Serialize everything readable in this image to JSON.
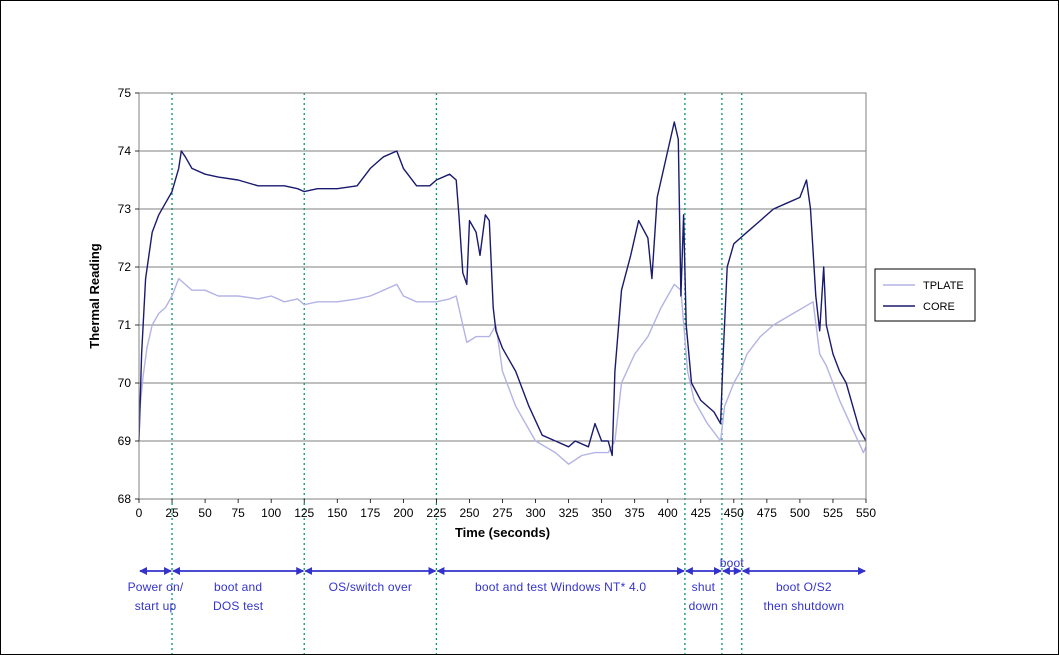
{
  "chart_data": {
    "type": "line",
    "xlabel": "Time (seconds)",
    "ylabel": "Thermal Reading",
    "xlim": [
      0,
      550
    ],
    "ylim": [
      68,
      75
    ],
    "x_ticks": [
      0,
      25,
      50,
      75,
      100,
      125,
      150,
      175,
      200,
      225,
      250,
      275,
      300,
      325,
      350,
      375,
      400,
      425,
      450,
      475,
      500,
      525,
      550
    ],
    "y_ticks": [
      68,
      69,
      70,
      71,
      72,
      73,
      74,
      75
    ],
    "grid": "horizontal",
    "legend_position": "right",
    "series": [
      {
        "name": "TPLATE",
        "color": "#b3b3e6",
        "points": [
          [
            0,
            69.4
          ],
          [
            3,
            70.1
          ],
          [
            6,
            70.6
          ],
          [
            10,
            71.0
          ],
          [
            15,
            71.2
          ],
          [
            20,
            71.3
          ],
          [
            25,
            71.5
          ],
          [
            30,
            71.8
          ],
          [
            35,
            71.7
          ],
          [
            40,
            71.6
          ],
          [
            50,
            71.6
          ],
          [
            60,
            71.5
          ],
          [
            75,
            71.5
          ],
          [
            90,
            71.45
          ],
          [
            100,
            71.5
          ],
          [
            110,
            71.4
          ],
          [
            120,
            71.45
          ],
          [
            125,
            71.35
          ],
          [
            135,
            71.4
          ],
          [
            150,
            71.4
          ],
          [
            165,
            71.45
          ],
          [
            175,
            71.5
          ],
          [
            185,
            71.6
          ],
          [
            195,
            71.7
          ],
          [
            200,
            71.5
          ],
          [
            210,
            71.4
          ],
          [
            225,
            71.4
          ],
          [
            235,
            71.45
          ],
          [
            240,
            71.5
          ],
          [
            245,
            71.0
          ],
          [
            248,
            70.7
          ],
          [
            255,
            70.8
          ],
          [
            265,
            70.8
          ],
          [
            270,
            71.0
          ],
          [
            275,
            70.2
          ],
          [
            285,
            69.6
          ],
          [
            300,
            69.0
          ],
          [
            315,
            68.8
          ],
          [
            325,
            68.6
          ],
          [
            335,
            68.75
          ],
          [
            345,
            68.8
          ],
          [
            355,
            68.8
          ],
          [
            360,
            69.0
          ],
          [
            365,
            70.0
          ],
          [
            375,
            70.5
          ],
          [
            385,
            70.8
          ],
          [
            395,
            71.3
          ],
          [
            405,
            71.7
          ],
          [
            410,
            71.6
          ],
          [
            415,
            70.2
          ],
          [
            420,
            69.7
          ],
          [
            430,
            69.3
          ],
          [
            440,
            69.0
          ],
          [
            443,
            69.6
          ],
          [
            450,
            70.0
          ],
          [
            455,
            70.2
          ],
          [
            460,
            70.5
          ],
          [
            470,
            70.8
          ],
          [
            480,
            71.0
          ],
          [
            495,
            71.2
          ],
          [
            510,
            71.4
          ],
          [
            515,
            70.5
          ],
          [
            520,
            70.3
          ],
          [
            525,
            70.0
          ],
          [
            530,
            69.7
          ],
          [
            540,
            69.2
          ],
          [
            548,
            68.8
          ],
          [
            550,
            68.9
          ]
        ]
      },
      {
        "name": "CORE",
        "color": "#1a1a6e",
        "points": [
          [
            0,
            69.0
          ],
          [
            2,
            70.5
          ],
          [
            5,
            71.8
          ],
          [
            10,
            72.6
          ],
          [
            15,
            72.9
          ],
          [
            20,
            73.1
          ],
          [
            25,
            73.3
          ],
          [
            30,
            73.7
          ],
          [
            32,
            74.0
          ],
          [
            35,
            73.9
          ],
          [
            40,
            73.7
          ],
          [
            50,
            73.6
          ],
          [
            60,
            73.55
          ],
          [
            75,
            73.5
          ],
          [
            90,
            73.4
          ],
          [
            100,
            73.4
          ],
          [
            110,
            73.4
          ],
          [
            120,
            73.35
          ],
          [
            125,
            73.3
          ],
          [
            135,
            73.35
          ],
          [
            150,
            73.35
          ],
          [
            165,
            73.4
          ],
          [
            175,
            73.7
          ],
          [
            185,
            73.9
          ],
          [
            195,
            74.0
          ],
          [
            200,
            73.7
          ],
          [
            210,
            73.4
          ],
          [
            220,
            73.4
          ],
          [
            225,
            73.5
          ],
          [
            235,
            73.6
          ],
          [
            240,
            73.5
          ],
          [
            242,
            72.9
          ],
          [
            245,
            71.9
          ],
          [
            248,
            71.7
          ],
          [
            250,
            72.8
          ],
          [
            255,
            72.6
          ],
          [
            258,
            72.2
          ],
          [
            262,
            72.9
          ],
          [
            265,
            72.8
          ],
          [
            268,
            71.3
          ],
          [
            270,
            70.9
          ],
          [
            275,
            70.6
          ],
          [
            285,
            70.2
          ],
          [
            295,
            69.6
          ],
          [
            305,
            69.1
          ],
          [
            315,
            69.0
          ],
          [
            325,
            68.9
          ],
          [
            330,
            69.0
          ],
          [
            340,
            68.9
          ],
          [
            345,
            69.3
          ],
          [
            350,
            69.0
          ],
          [
            355,
            69.0
          ],
          [
            358,
            68.75
          ],
          [
            360,
            70.2
          ],
          [
            365,
            71.6
          ],
          [
            372,
            72.2
          ],
          [
            378,
            72.8
          ],
          [
            385,
            72.5
          ],
          [
            388,
            71.8
          ],
          [
            392,
            73.2
          ],
          [
            400,
            74.0
          ],
          [
            405,
            74.5
          ],
          [
            408,
            74.2
          ],
          [
            410,
            71.5
          ],
          [
            412,
            72.9
          ],
          [
            414,
            71.0
          ],
          [
            418,
            70.0
          ],
          [
            425,
            69.7
          ],
          [
            435,
            69.5
          ],
          [
            440,
            69.3
          ],
          [
            442,
            70.5
          ],
          [
            445,
            72.0
          ],
          [
            450,
            72.4
          ],
          [
            455,
            72.5
          ],
          [
            460,
            72.6
          ],
          [
            470,
            72.8
          ],
          [
            480,
            73.0
          ],
          [
            490,
            73.1
          ],
          [
            500,
            73.2
          ],
          [
            505,
            73.5
          ],
          [
            508,
            73.0
          ],
          [
            512,
            71.5
          ],
          [
            515,
            70.9
          ],
          [
            518,
            72.0
          ],
          [
            520,
            71.0
          ],
          [
            525,
            70.5
          ],
          [
            530,
            70.2
          ],
          [
            535,
            70.0
          ],
          [
            540,
            69.6
          ],
          [
            545,
            69.2
          ],
          [
            550,
            69.0
          ]
        ]
      }
    ],
    "phase_markers": [
      25,
      125,
      225,
      413,
      441,
      456
    ],
    "phases": [
      {
        "label_lines": [
          "Power on/",
          "start up"
        ],
        "from": 0,
        "to": 25
      },
      {
        "label_lines": [
          "boot and",
          "DOS test"
        ],
        "from": 25,
        "to": 125
      },
      {
        "label_lines": [
          "OS/switch over"
        ],
        "from": 125,
        "to": 225
      },
      {
        "label_lines": [
          "boot and test Windows NT* 4.0"
        ],
        "from": 225,
        "to": 413
      },
      {
        "label_lines": [
          "shut",
          "down"
        ],
        "from": 413,
        "to": 441
      },
      {
        "label_lines": [
          "boot"
        ],
        "from": 441,
        "to": 456
      },
      {
        "label_lines": [
          "boot O/S2",
          "then shutdown"
        ],
        "from": 456,
        "to": 550
      }
    ]
  },
  "colors": {
    "marker_line": "#009966",
    "phase_arrow": "#3333cc",
    "grid": "#000000"
  }
}
